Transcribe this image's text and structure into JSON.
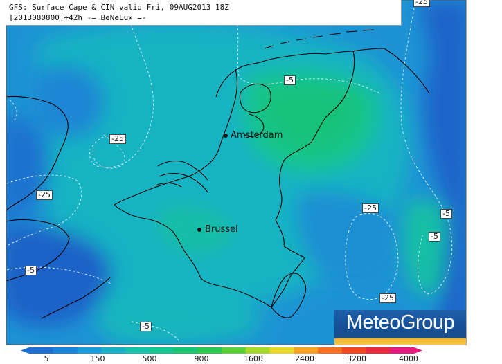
{
  "header": {
    "line1": "GFS: Surface Cape & CIN valid Fri, 09AUG2013 18Z",
    "line2": "[2013080800]+42h -= BeNeLux =-"
  },
  "cities": [
    {
      "name": "Amsterdam"
    },
    {
      "name": "Brussel"
    }
  ],
  "contour_labels": [
    "-5",
    "-25",
    "-25",
    "-5",
    "-25",
    "-5",
    "-5",
    "-25",
    "-5",
    "-25"
  ],
  "logo": {
    "text": "MeteoGroup"
  },
  "colorbar": {
    "labels": [
      "5",
      "150",
      "500",
      "900",
      "1600",
      "2400",
      "3200",
      "4000"
    ],
    "colors": [
      "#1d6fd0",
      "#1a84d9",
      "#1a9ad9",
      "#19b0c7",
      "#18c0aa",
      "#16c48e",
      "#19c370",
      "#2cc750",
      "#5bd13a",
      "#a6da2c",
      "#e8d82a",
      "#f5a425",
      "#f37222",
      "#ee4721",
      "#e92a3c",
      "#e41b7c"
    ]
  },
  "colors": {
    "deep_blue": "#1a5fc8",
    "mid_blue": "#1e8fd6",
    "teal": "#19b4c2",
    "green": "#18c18c"
  }
}
